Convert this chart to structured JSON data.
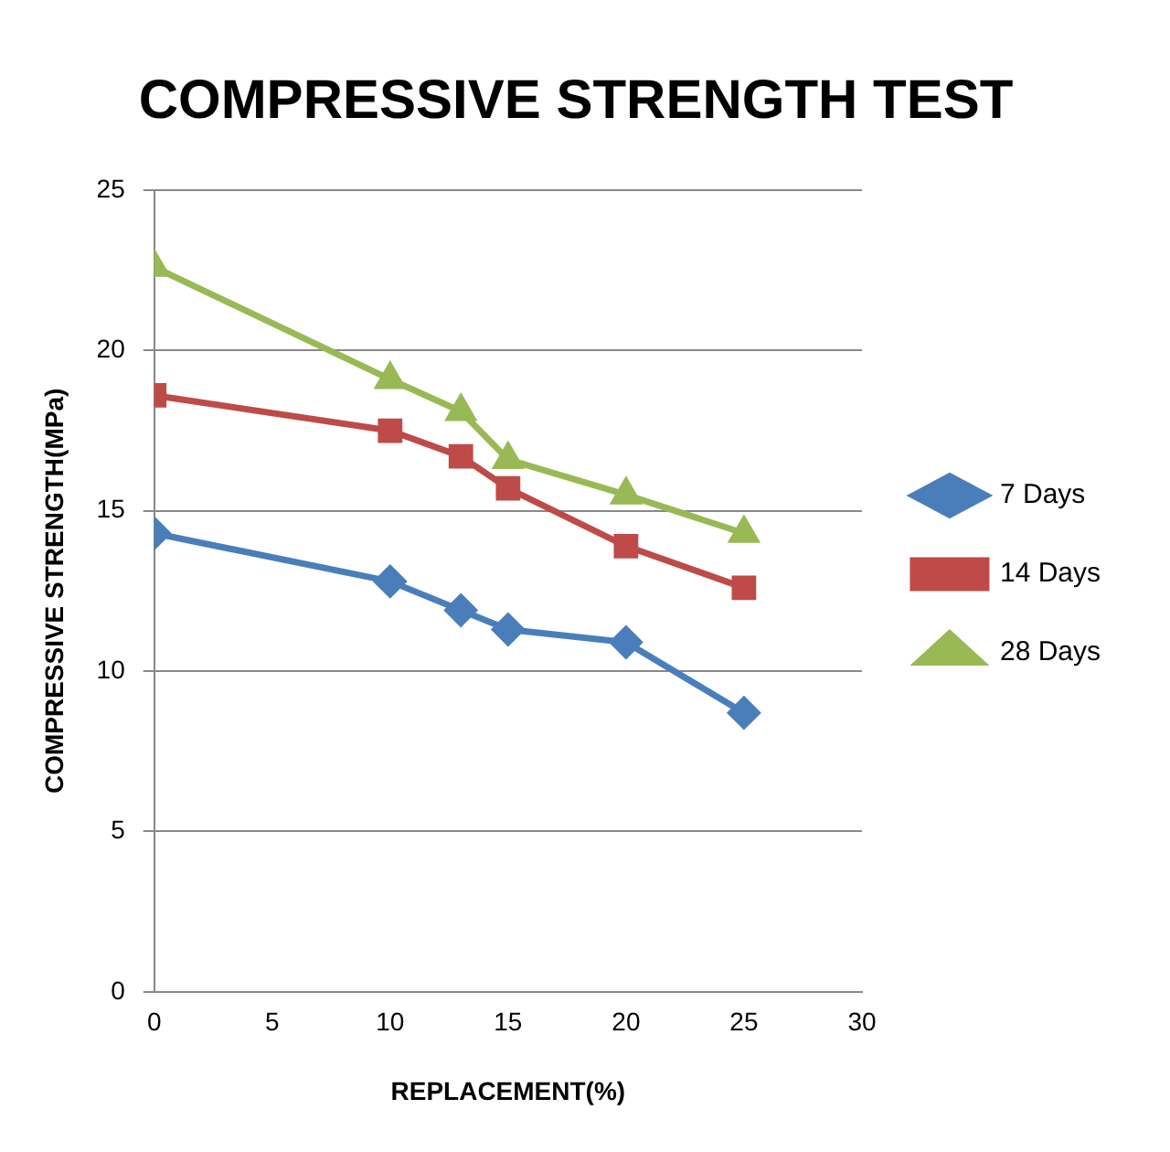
{
  "chart_data": {
    "type": "line",
    "title": "COMPRESSIVE STRENGTH TEST",
    "xlabel": "REPLACEMENT(%)",
    "ylabel": "COMPRESSIVE STRENGTH(MPa)",
    "x": [
      0,
      10,
      13,
      15,
      20,
      25
    ],
    "series": [
      {
        "name": "7 Days",
        "color": "#4a7ebb",
        "marker": "diamond",
        "values": [
          14.3,
          12.8,
          11.9,
          11.3,
          10.9,
          8.7
        ]
      },
      {
        "name": "14 Days",
        "color": "#be4b48",
        "marker": "square",
        "values": [
          18.6,
          17.5,
          16.7,
          15.7,
          13.9,
          12.6
        ]
      },
      {
        "name": "28 Days",
        "color": "#98b954",
        "marker": "triangle",
        "values": [
          22.6,
          19.1,
          18.1,
          16.6,
          15.5,
          14.3
        ]
      }
    ],
    "xlim": [
      0,
      30
    ],
    "xticks": [
      0,
      5,
      10,
      15,
      20,
      25,
      30
    ],
    "ylim": [
      0,
      25
    ],
    "yticks": [
      0,
      5,
      10,
      15,
      20,
      25
    ],
    "grid": "y",
    "legend": "right",
    "line_style": "solid"
  }
}
